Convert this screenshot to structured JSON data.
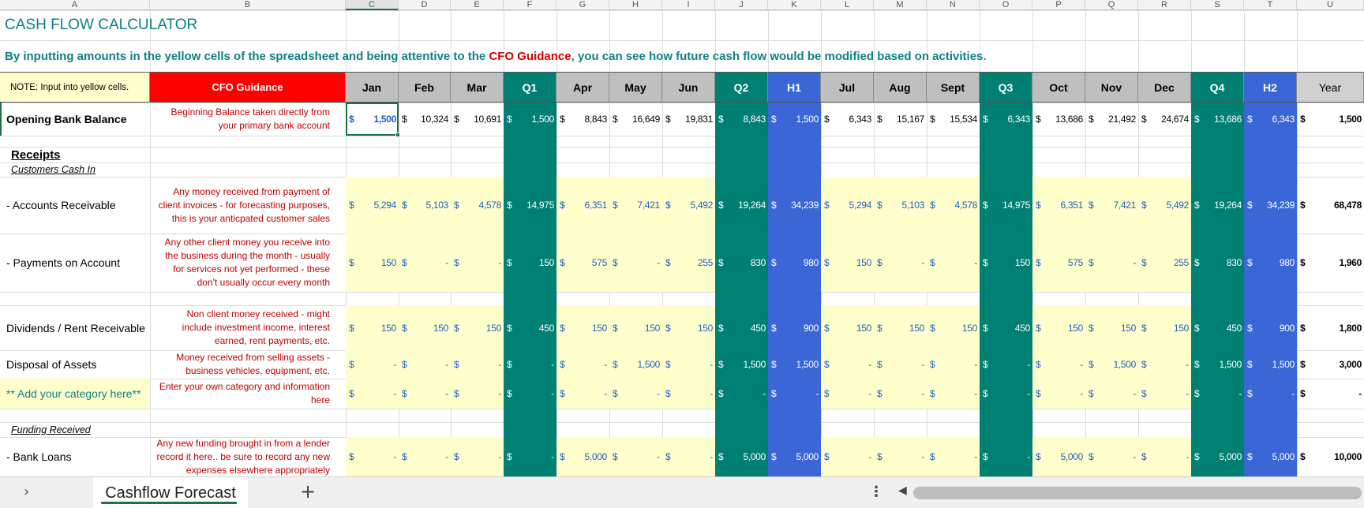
{
  "sheet": {
    "title": "CASH FLOW CALCULATOR",
    "intro_part1": "By inputting amounts in the yellow cells of the spreadsheet and being attentive to the ",
    "intro_highlight": "CFO Guidance",
    "intro_part2": ", you can see how future cash flow would be modified based on activities.",
    "note": "NOTE:  Input into yellow cells.",
    "guidance_header": "CFO Guidance",
    "columns": [
      "A",
      "B",
      "C",
      "D",
      "E",
      "F",
      "G",
      "H",
      "I",
      "J",
      "K",
      "L",
      "M",
      "N",
      "O",
      "P",
      "Q",
      "R",
      "S",
      "T",
      "U"
    ],
    "months": [
      "Jan",
      "Feb",
      "Mar",
      "Q1",
      "Apr",
      "May",
      "Jun",
      "Q2",
      "H1",
      "Jul",
      "Aug",
      "Sept",
      "Q3",
      "Oct",
      "Nov",
      "Dec",
      "Q4",
      "H2",
      "Year"
    ],
    "currency": "$",
    "receipts_heading": "Receipts",
    "customers_heading": "Customers Cash In",
    "funding_heading": "Funding Received",
    "rows": [
      {
        "label": "Opening Bank Balance",
        "guidance": "Beginning Balance taken directly from your primary bank account",
        "values": [
          "1,500",
          "10,324",
          "10,691",
          "1,500",
          "8,843",
          "16,649",
          "19,831",
          "8,843",
          "1,500",
          "6,343",
          "15,167",
          "15,534",
          "6,343",
          "13,686",
          "21,492",
          "24,674",
          "13,686",
          "6,343",
          "1,500"
        ]
      },
      {
        "label": " - Accounts Receivable",
        "guidance": "Any money received from payment of client invoices - for forecasting purposes, this is your anticpated customer sales",
        "values": [
          "5,294",
          "5,103",
          "4,578",
          "14,975",
          "6,351",
          "7,421",
          "5,492",
          "19,264",
          "34,239",
          "5,294",
          "5,103",
          "4,578",
          "14,975",
          "6,351",
          "7,421",
          "5,492",
          "19,264",
          "34,239",
          "68,478"
        ]
      },
      {
        "label": " - Payments on Account",
        "guidance": "Any other client money you receive into the business during the month - usually for services not yet performed - these don't usually occur every month",
        "values": [
          "150",
          "-",
          "-",
          "150",
          "575",
          "-",
          "255",
          "830",
          "980",
          "150",
          "-",
          "-",
          "150",
          "575",
          "-",
          "255",
          "830",
          "980",
          "1,960"
        ]
      },
      {
        "label": "Dividends / Rent Receivable",
        "guidance": "Non client money received - might include investment income, interest earned, rent payments, etc.",
        "values": [
          "150",
          "150",
          "150",
          "450",
          "150",
          "150",
          "150",
          "450",
          "900",
          "150",
          "150",
          "150",
          "450",
          "150",
          "150",
          "150",
          "450",
          "900",
          "1,800"
        ]
      },
      {
        "label": "Disposal of Assets",
        "guidance": "Money received from selling assets - business vehicles, equipment, etc.",
        "values": [
          "-",
          "-",
          "-",
          "-",
          "-",
          "1,500",
          "-",
          "1,500",
          "1,500",
          "-",
          "-",
          "-",
          "-",
          "-",
          "1,500",
          "-",
          "1,500",
          "1,500",
          "3,000"
        ]
      },
      {
        "label": "** Add your category here**",
        "guidance": "Enter your own category and information here",
        "values": [
          "-",
          "-",
          "-",
          "-",
          "-",
          "-",
          "-",
          "-",
          "-",
          "-",
          "-",
          "-",
          "-",
          "-",
          "-",
          "-",
          "-",
          "-",
          "-"
        ]
      },
      {
        "label": " - Bank Loans",
        "guidance": "Any new funding brought in from a lender record it here.. be sure to record any new expenses elsewhere appropriately",
        "values": [
          "-",
          "-",
          "-",
          "-",
          "5,000",
          "-",
          "-",
          "5,000",
          "5,000",
          "-",
          "-",
          "-",
          "-",
          "5,000",
          "-",
          "-",
          "5,000",
          "5,000",
          "10,000"
        ]
      }
    ]
  },
  "tabbar": {
    "nav_icon": "chevron-right-icon",
    "sheet_tab": "Cashflow Forecast",
    "add_icon": "plus-icon",
    "more_icon": "more-vertical-icon",
    "scroll_left_icon": "scroll-left-arrow-icon"
  },
  "colors": {
    "teal": "#007f73",
    "blue": "#3a66d6",
    "yellow": "#ffffcc",
    "red_header": "#ff0000",
    "grey_header": "#bfbfbf",
    "title_teal": "#0d7f86",
    "guidance_red": "#c00000",
    "value_blue": "#1f5fbf"
  }
}
